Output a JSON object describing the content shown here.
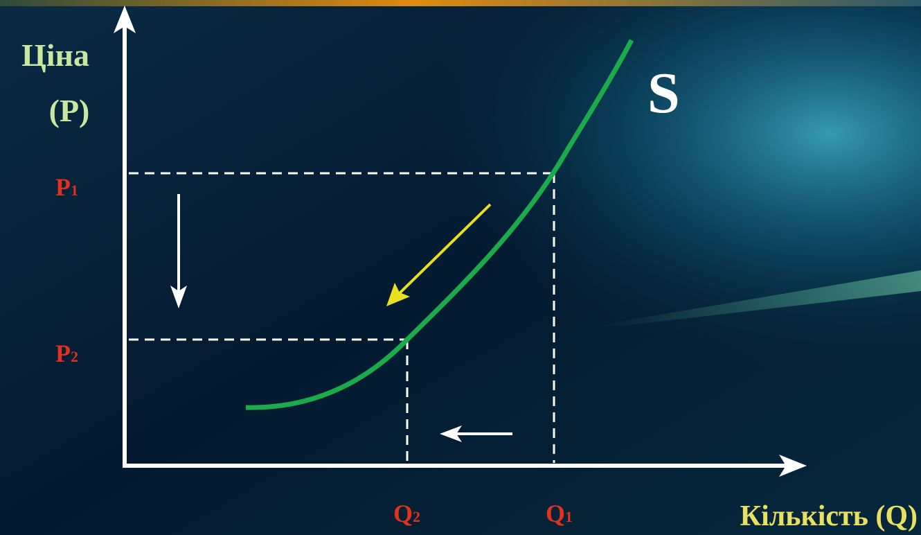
{
  "y_axis_label": {
    "line1": "Ціна",
    "line2": "(P)"
  },
  "x_axis_label": "Кількість (Q)",
  "curve_label": "S",
  "price_labels": [
    {
      "letter": "P",
      "sub": "1"
    },
    {
      "letter": "P",
      "sub": "2"
    }
  ],
  "quantity_labels": [
    {
      "letter": "Q",
      "sub": "2"
    },
    {
      "letter": "Q",
      "sub": "1"
    }
  ]
}
